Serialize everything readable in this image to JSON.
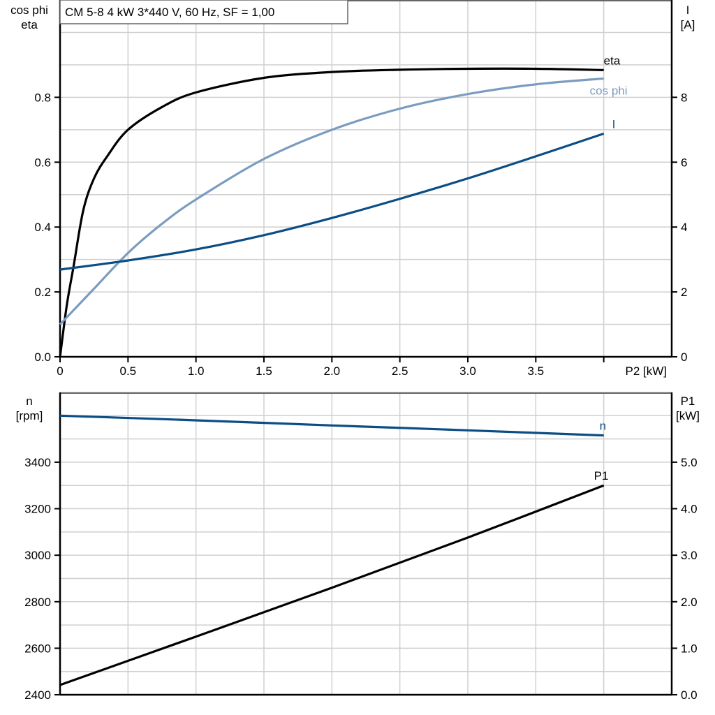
{
  "chart_data": [
    {
      "type": "line",
      "title": "CM 5-8   4 kW   3*440 V, 60 Hz, SF = 1,00",
      "xlabel": "P2 [kW]",
      "ylabel_left": [
        "cos phi",
        "eta"
      ],
      "ylabel_right": [
        "I",
        "[A]"
      ],
      "xlim": [
        0,
        4.5
      ],
      "ylim_left": [
        0,
        1.1
      ],
      "ylim_right": [
        0,
        11
      ],
      "x_ticks": [
        0,
        0.5,
        1.0,
        1.5,
        2.0,
        2.5,
        3.0,
        3.5
      ],
      "x_tick_labels": [
        "0",
        "0.5",
        "1.0",
        "1.5",
        "2.0",
        "2.5",
        "3.0",
        "3.5"
      ],
      "y_left_ticks": [
        "0.0",
        "0.2",
        "0.4",
        "0.6",
        "0.8"
      ],
      "y_right_ticks": [
        "0",
        "2",
        "4",
        "6",
        "8"
      ],
      "grid": true,
      "series": [
        {
          "name": "eta",
          "axis": "left",
          "color": "#000000",
          "x": [
            0,
            0.05,
            0.1,
            0.17,
            0.25,
            0.35,
            0.5,
            0.75,
            1.0,
            1.5,
            2.0,
            2.5,
            3.0,
            3.5,
            4.0
          ],
          "y": [
            0,
            0.16,
            0.28,
            0.45,
            0.55,
            0.62,
            0.7,
            0.77,
            0.815,
            0.86,
            0.878,
            0.885,
            0.888,
            0.888,
            0.884
          ]
        },
        {
          "name": "cos phi",
          "axis": "left",
          "color": "#7a9cc0",
          "x": [
            0,
            0.25,
            0.5,
            0.75,
            1.0,
            1.5,
            2.0,
            2.5,
            3.0,
            3.5,
            4.0
          ],
          "y": [
            0.1,
            0.21,
            0.32,
            0.41,
            0.485,
            0.61,
            0.7,
            0.765,
            0.81,
            0.84,
            0.858
          ]
        },
        {
          "name": "I",
          "axis": "right",
          "color": "#0b4d85",
          "x": [
            0,
            0.5,
            1.0,
            1.5,
            2.0,
            2.5,
            3.0,
            3.5,
            4.0
          ],
          "y": [
            2.69,
            2.97,
            3.31,
            3.75,
            4.28,
            4.87,
            5.5,
            6.18,
            6.88
          ]
        }
      ]
    },
    {
      "type": "line",
      "ylabel_left": [
        "n",
        "[rpm]"
      ],
      "ylabel_right": [
        "P1",
        "[kW]"
      ],
      "xlim": [
        0,
        4.5
      ],
      "ylim_left": [
        2400,
        3700
      ],
      "ylim_right": [
        0,
        6.5
      ],
      "y_left_ticks": [
        "2400",
        "2600",
        "2800",
        "3000",
        "3200",
        "3400"
      ],
      "y_right_ticks": [
        "0.0",
        "1.0",
        "2.0",
        "3.0",
        "4.0",
        "5.0"
      ],
      "grid": true,
      "series": [
        {
          "name": "n",
          "axis": "left",
          "color": "#0b4d85",
          "x": [
            0,
            1.0,
            2.0,
            3.0,
            4.0
          ],
          "y": [
            3600,
            3580,
            3558,
            3537,
            3515
          ]
        },
        {
          "name": "P1",
          "axis": "right",
          "color": "#000000",
          "x": [
            0,
            1.0,
            2.0,
            3.0,
            4.0
          ],
          "y": [
            0.21,
            1.25,
            2.3,
            3.38,
            4.5
          ]
        }
      ]
    }
  ]
}
